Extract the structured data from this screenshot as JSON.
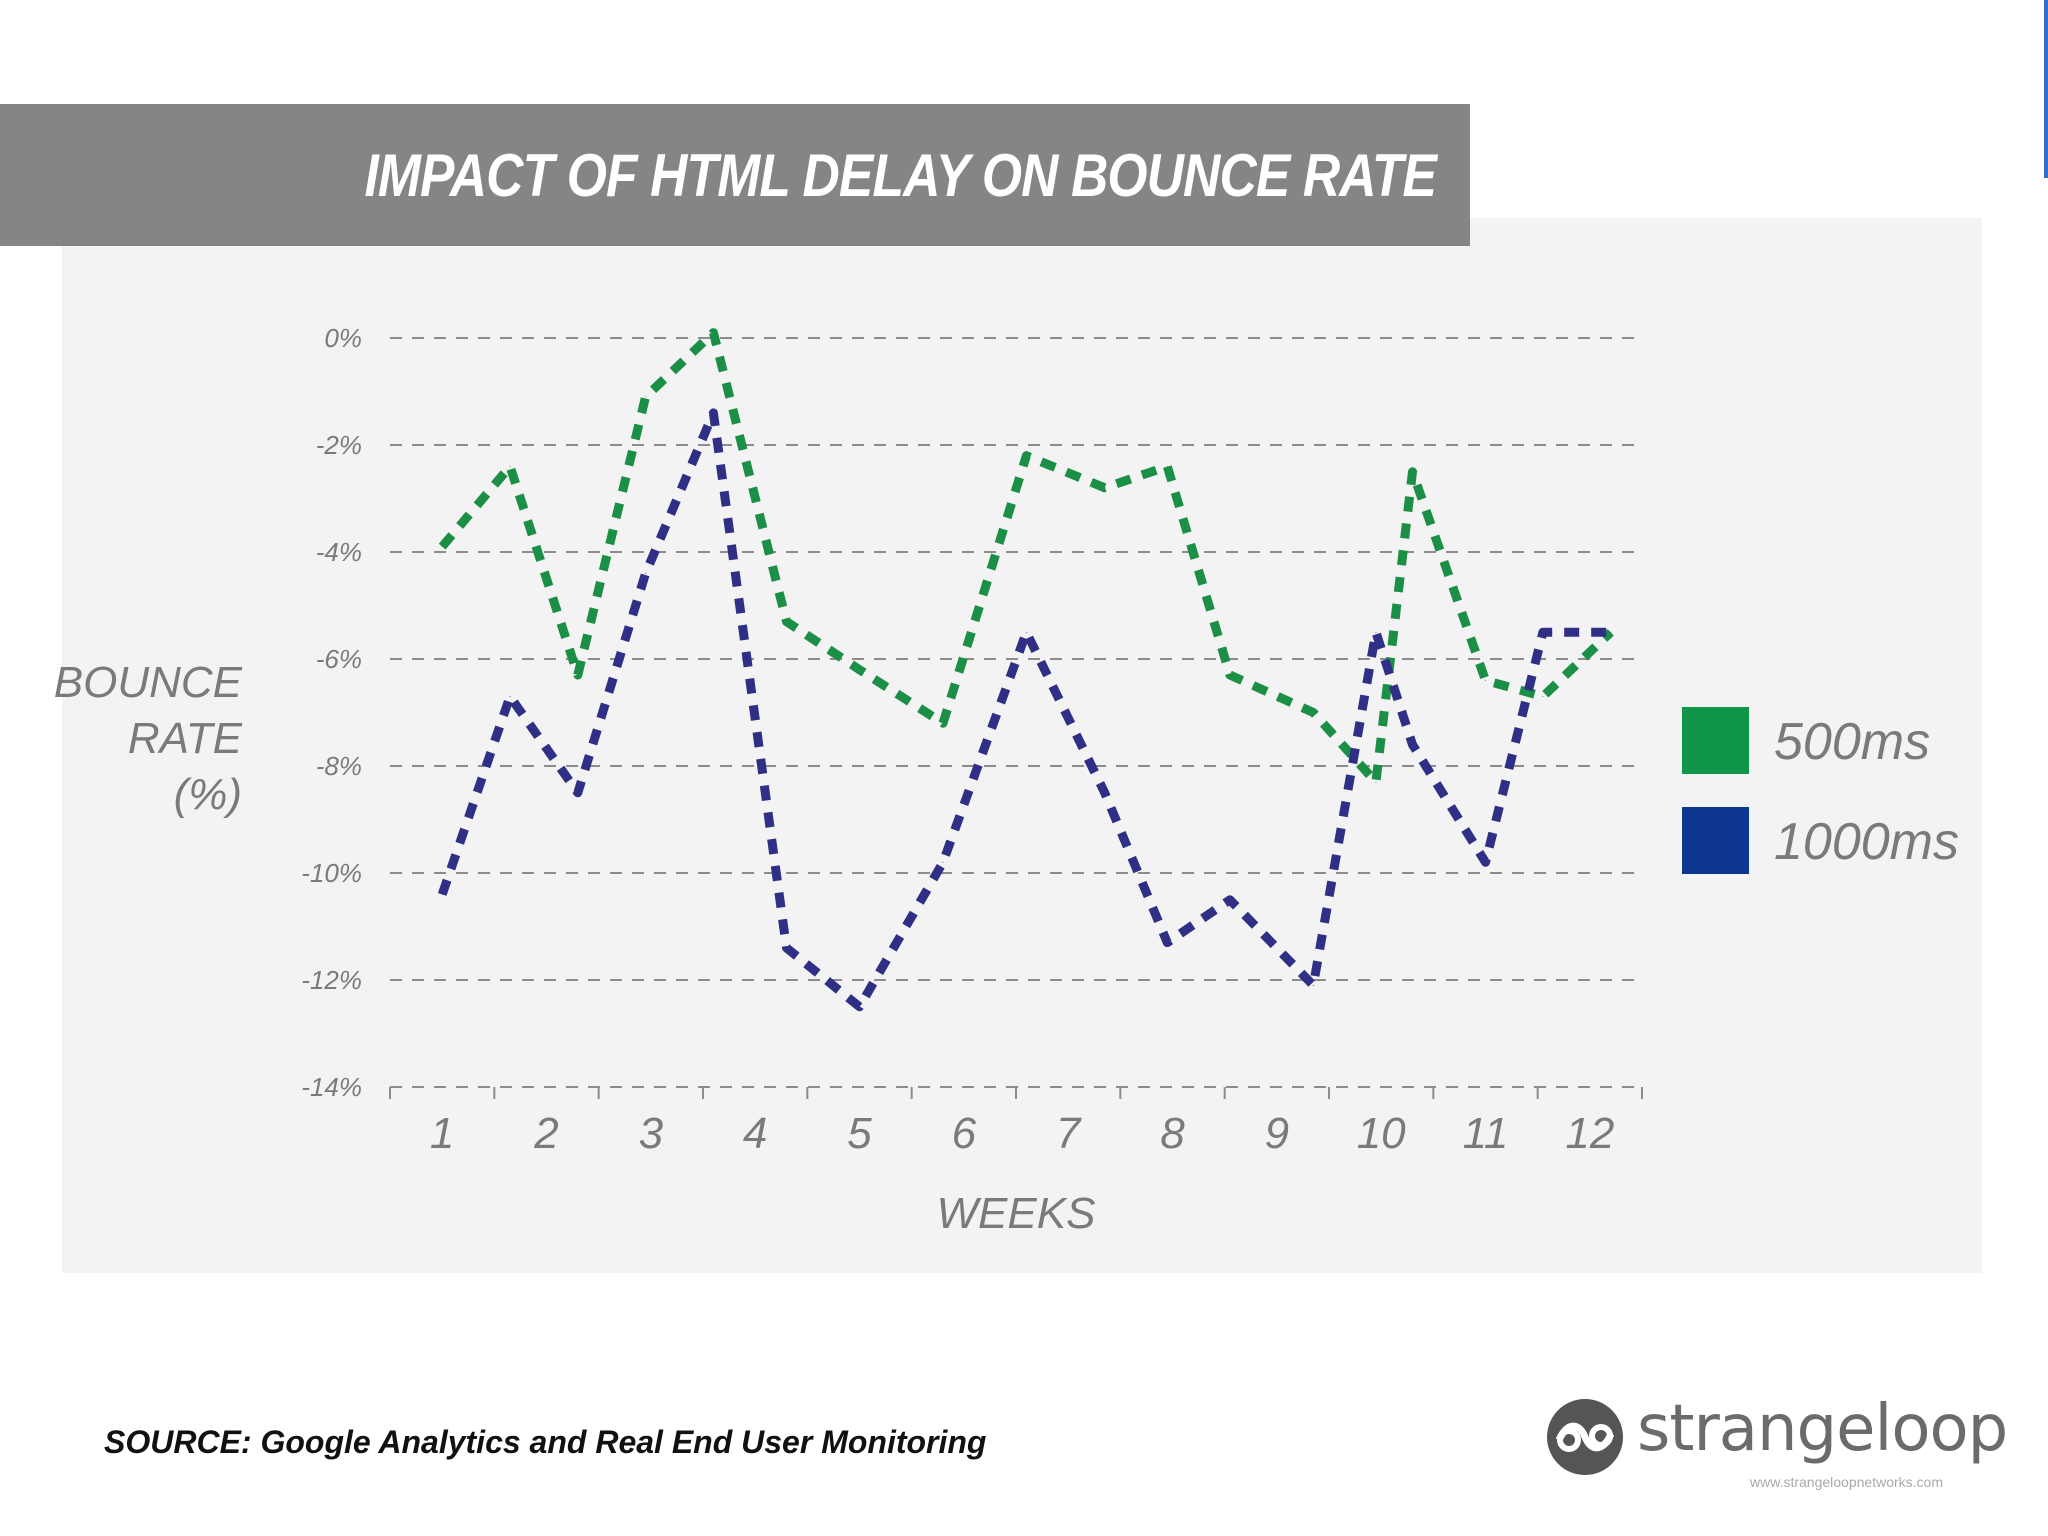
{
  "title": "IMPACT OF HTML DELAY ON BOUNCE RATE",
  "chart_data": {
    "type": "line",
    "title": "IMPACT OF HTML DELAY ON BOUNCE RATE",
    "xlabel": "WEEKS",
    "ylabel": [
      "BOUNCE",
      "RATE",
      "(%)"
    ],
    "x_ticks": [
      "1",
      "2",
      "3",
      "4",
      "5",
      "6",
      "7",
      "8",
      "9",
      "10",
      "11",
      "12"
    ],
    "y_ticks": [
      "0%",
      "-2%",
      "-4%",
      "-6%",
      "-8%",
      "-10%",
      "-12%",
      "-14%"
    ],
    "ylim": [
      -14,
      0
    ],
    "xlim": [
      0.5,
      12.5
    ],
    "grid": true,
    "series": [
      {
        "name": "500ms",
        "color": "#1c8f46",
        "x": [
          1,
          1.65,
          2.3,
          2.95,
          3.6,
          4.3,
          5,
          5.8,
          6.6,
          7.35,
          7.95,
          8.55,
          9.35,
          9.95,
          10.3,
          11,
          11.55,
          12.2
        ],
        "values": [
          -3.9,
          -2.4,
          -6.3,
          -1.1,
          0.1,
          -5.3,
          -6.2,
          -7.2,
          -2.2,
          -2.8,
          -2.4,
          -6.3,
          -7.0,
          -8.3,
          -2.5,
          -6.4,
          -6.7,
          -5.5
        ]
      },
      {
        "name": "1000ms",
        "color": "#2e2f85",
        "x": [
          1,
          1.65,
          2.3,
          2.95,
          3.6,
          4.3,
          5,
          5.8,
          6.6,
          7.35,
          7.95,
          8.55,
          9.35,
          9.95,
          10.3,
          11,
          11.55,
          12.2
        ],
        "values": [
          -10.4,
          -6.7,
          -8.5,
          -4.4,
          -1.4,
          -11.4,
          -12.5,
          -9.8,
          -5.5,
          -8.5,
          -11.3,
          -10.5,
          -12.1,
          -5.5,
          -7.6,
          -9.8,
          -5.5,
          -5.5
        ]
      }
    ],
    "legend": {
      "position": "right",
      "entries": [
        {
          "label": "500ms",
          "color": "#11954a"
        },
        {
          "label": "1000ms",
          "color": "#0c3690"
        }
      ]
    }
  },
  "source": "SOURCE:  Google Analytics and Real End User Monitoring",
  "logo": {
    "name": "strangeloop",
    "url": "www.strangeloopnetworks.com",
    "icon": "strangeloop-logo-icon"
  }
}
